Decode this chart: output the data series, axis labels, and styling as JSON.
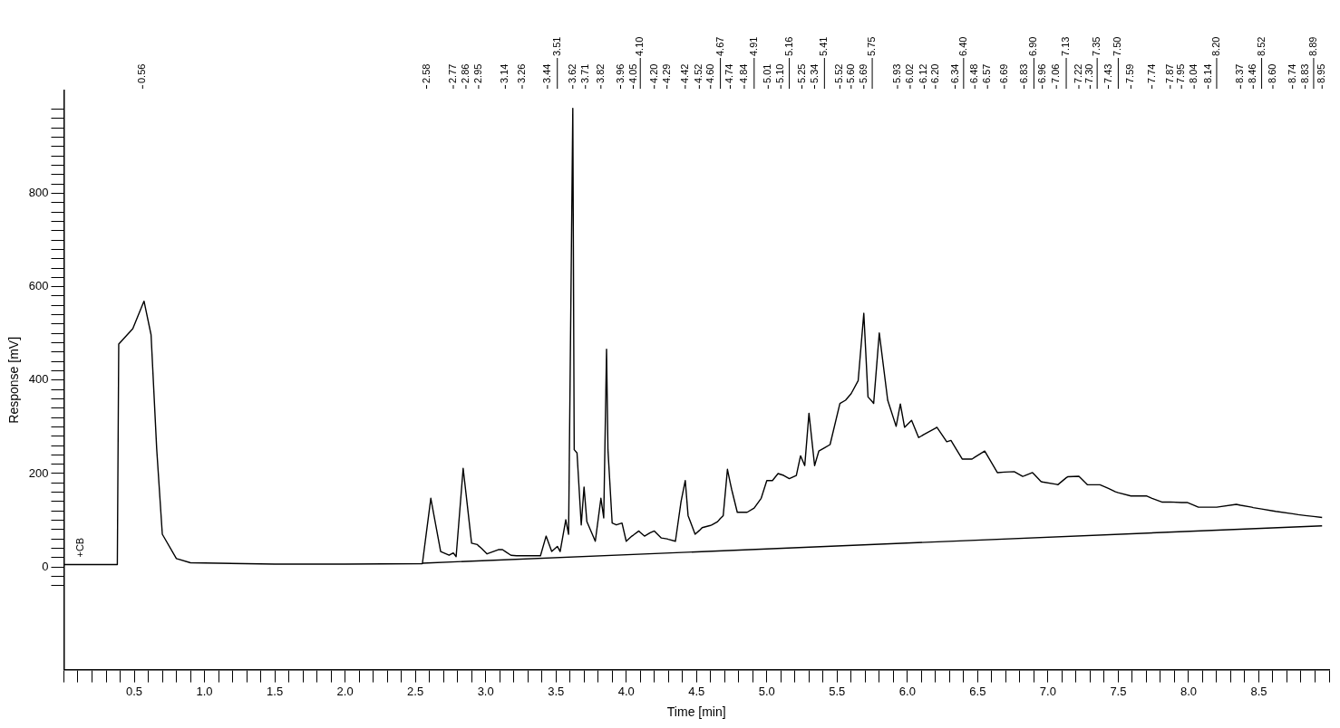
{
  "chart_data": {
    "type": "line",
    "xlabel": "Time [min]",
    "ylabel": "Response [mV]",
    "grid": false,
    "legend": false,
    "marker": "none",
    "line_style": "solid",
    "xlim": [
      0,
      9
    ],
    "ylim": [
      -220,
      1020
    ],
    "xticks": [
      {
        "value": 0,
        "label": null
      },
      {
        "value": 0.1,
        "label": null
      },
      {
        "value": 0.2,
        "label": null
      },
      {
        "value": 0.3,
        "label": null
      },
      {
        "value": 0.4,
        "label": null
      },
      {
        "value": 0.5,
        "label": "0.5"
      },
      {
        "value": 0.6,
        "label": null
      },
      {
        "value": 0.7,
        "label": null
      },
      {
        "value": 0.8,
        "label": null
      },
      {
        "value": 0.9,
        "label": null
      },
      {
        "value": 1,
        "label": "1.0"
      },
      {
        "value": 1.1,
        "label": null
      },
      {
        "value": 1.2,
        "label": null
      },
      {
        "value": 1.3,
        "label": null
      },
      {
        "value": 1.4,
        "label": null
      },
      {
        "value": 1.5,
        "label": "1.5"
      },
      {
        "value": 1.6,
        "label": null
      },
      {
        "value": 1.7,
        "label": null
      },
      {
        "value": 1.8,
        "label": null
      },
      {
        "value": 1.9,
        "label": null
      },
      {
        "value": 2,
        "label": "2.0"
      },
      {
        "value": 2.1,
        "label": null
      },
      {
        "value": 2.2,
        "label": null
      },
      {
        "value": 2.3,
        "label": null
      },
      {
        "value": 2.4,
        "label": null
      },
      {
        "value": 2.5,
        "label": "2.5"
      },
      {
        "value": 2.6,
        "label": null
      },
      {
        "value": 2.7,
        "label": null
      },
      {
        "value": 2.8,
        "label": null
      },
      {
        "value": 2.9,
        "label": null
      },
      {
        "value": 3,
        "label": "3.0"
      },
      {
        "value": 3.1,
        "label": null
      },
      {
        "value": 3.2,
        "label": null
      },
      {
        "value": 3.3,
        "label": null
      },
      {
        "value": 3.4,
        "label": null
      },
      {
        "value": 3.5,
        "label": "3.5"
      },
      {
        "value": 3.6,
        "label": null
      },
      {
        "value": 3.7,
        "label": null
      },
      {
        "value": 3.8,
        "label": null
      },
      {
        "value": 3.9,
        "label": null
      },
      {
        "value": 4,
        "label": "4.0"
      },
      {
        "value": 4.1,
        "label": null
      },
      {
        "value": 4.2,
        "label": null
      },
      {
        "value": 4.3,
        "label": null
      },
      {
        "value": 4.4,
        "label": null
      },
      {
        "value": 4.5,
        "label": "4.5"
      },
      {
        "value": 4.6,
        "label": null
      },
      {
        "value": 4.7,
        "label": null
      },
      {
        "value": 4.8,
        "label": null
      },
      {
        "value": 4.9,
        "label": null
      },
      {
        "value": 5,
        "label": "5.0"
      },
      {
        "value": 5.1,
        "label": null
      },
      {
        "value": 5.2,
        "label": null
      },
      {
        "value": 5.3,
        "label": null
      },
      {
        "value": 5.4,
        "label": null
      },
      {
        "value": 5.5,
        "label": "5.5"
      },
      {
        "value": 5.6,
        "label": null
      },
      {
        "value": 5.7,
        "label": null
      },
      {
        "value": 5.8,
        "label": null
      },
      {
        "value": 5.9,
        "label": null
      },
      {
        "value": 6,
        "label": "6.0"
      },
      {
        "value": 6.1,
        "label": null
      },
      {
        "value": 6.2,
        "label": null
      },
      {
        "value": 6.3,
        "label": null
      },
      {
        "value": 6.4,
        "label": null
      },
      {
        "value": 6.5,
        "label": "6.5"
      },
      {
        "value": 6.6,
        "label": null
      },
      {
        "value": 6.7,
        "label": null
      },
      {
        "value": 6.8,
        "label": null
      },
      {
        "value": 6.9,
        "label": null
      },
      {
        "value": 7,
        "label": "7.0"
      },
      {
        "value": 7.1,
        "label": null
      },
      {
        "value": 7.2,
        "label": null
      },
      {
        "value": 7.3,
        "label": null
      },
      {
        "value": 7.4,
        "label": null
      },
      {
        "value": 7.5,
        "label": "7.5"
      },
      {
        "value": 7.6,
        "label": null
      },
      {
        "value": 7.7,
        "label": null
      },
      {
        "value": 7.8,
        "label": null
      },
      {
        "value": 7.9,
        "label": null
      },
      {
        "value": 8,
        "label": "8.0"
      },
      {
        "value": 8.1,
        "label": null
      },
      {
        "value": 8.2,
        "label": null
      },
      {
        "value": 8.3,
        "label": null
      },
      {
        "value": 8.4,
        "label": null
      },
      {
        "value": 8.5,
        "label": "8.5"
      },
      {
        "value": 8.6,
        "label": null
      },
      {
        "value": 8.7,
        "label": null
      },
      {
        "value": 8.8,
        "label": null
      },
      {
        "value": 8.9,
        "label": null
      },
      {
        "value": 9,
        "label": null
      }
    ],
    "yticks": [
      {
        "value": -40,
        "label": null
      },
      {
        "value": -20,
        "label": null
      },
      0,
      {
        "value": 20,
        "label": null
      },
      {
        "value": 40,
        "label": null
      },
      {
        "value": 60,
        "label": null
      },
      {
        "value": 80,
        "label": null
      },
      {
        "value": 100,
        "label": null
      },
      {
        "value": 120,
        "label": null
      },
      {
        "value": 140,
        "label": null
      },
      {
        "value": 160,
        "label": null
      },
      {
        "value": 180,
        "label": null
      },
      200,
      {
        "value": 220,
        "label": null
      },
      {
        "value": 240,
        "label": null
      },
      {
        "value": 260,
        "label": null
      },
      {
        "value": 280,
        "label": null
      },
      {
        "value": 300,
        "label": null
      },
      {
        "value": 320,
        "label": null
      },
      {
        "value": 340,
        "label": null
      },
      {
        "value": 360,
        "label": null
      },
      {
        "value": 380,
        "label": null
      },
      400,
      {
        "value": 420,
        "label": null
      },
      {
        "value": 440,
        "label": null
      },
      {
        "value": 460,
        "label": null
      },
      {
        "value": 480,
        "label": null
      },
      {
        "value": 500,
        "label": null
      },
      {
        "value": 520,
        "label": null
      },
      {
        "value": 540,
        "label": null
      },
      {
        "value": 560,
        "label": null
      },
      {
        "value": 580,
        "label": null
      },
      600,
      {
        "value": 620,
        "label": null
      },
      {
        "value": 640,
        "label": null
      },
      {
        "value": 660,
        "label": null
      },
      {
        "value": 680,
        "label": null
      },
      {
        "value": 700,
        "label": null
      },
      {
        "value": 720,
        "label": null
      },
      {
        "value": 740,
        "label": null
      },
      {
        "value": 760,
        "label": null
      },
      {
        "value": 780,
        "label": null
      },
      800,
      {
        "value": 820,
        "label": null
      },
      {
        "value": 840,
        "label": null
      },
      {
        "value": 860,
        "label": null
      },
      {
        "value": 880,
        "label": null
      },
      {
        "value": 900,
        "label": null
      },
      {
        "value": 920,
        "label": null
      },
      {
        "value": 940,
        "label": null
      },
      {
        "value": 960,
        "label": null
      },
      {
        "value": 980,
        "label": null
      }
    ],
    "series": [
      {
        "color": "#000000",
        "x": [
          0,
          0.38,
          0.39,
          0.49,
          0.56,
          0.57,
          0.62,
          0.66,
          0.7,
          0.8,
          0.9,
          1.5,
          2.0,
          2.55,
          2.58,
          2.61,
          2.68,
          2.74,
          2.77,
          2.79,
          2.84,
          2.86,
          2.9,
          2.94,
          2.95,
          2.97,
          3.01,
          3.09,
          3.12,
          3.14,
          3.18,
          3.22,
          3.26,
          3.39,
          3.43,
          3.44,
          3.47,
          3.51,
          3.53,
          3.57,
          3.59,
          3.62,
          3.63,
          3.65,
          3.68,
          3.7,
          3.71,
          3.72,
          3.78,
          3.82,
          3.84,
          3.86,
          3.87,
          3.9,
          3.93,
          3.96,
          3.97,
          4.0,
          4.04,
          4.05,
          4.09,
          4.1,
          4.13,
          4.17,
          4.2,
          4.25,
          4.29,
          4.3,
          4.35,
          4.39,
          4.42,
          4.44,
          4.49,
          4.52,
          4.54,
          4.6,
          4.61,
          4.65,
          4.67,
          4.69,
          4.72,
          4.74,
          4.75,
          4.79,
          4.84,
          4.86,
          4.91,
          4.96,
          5.0,
          5.01,
          5.04,
          5.08,
          5.1,
          5.12,
          5.16,
          5.21,
          5.24,
          5.25,
          5.27,
          5.3,
          5.34,
          5.37,
          5.41,
          5.45,
          5.52,
          5.56,
          5.6,
          5.65,
          5.69,
          5.72,
          5.75,
          5.76,
          5.8,
          5.86,
          5.92,
          5.93,
          5.95,
          5.98,
          6.02,
          6.03,
          6.08,
          6.12,
          6.2,
          6.21,
          6.28,
          6.31,
          6.34,
          6.39,
          6.4,
          6.46,
          6.48,
          6.55,
          6.57,
          6.64,
          6.69,
          6.76,
          6.82,
          6.83,
          6.89,
          6.9,
          6.95,
          6.96,
          7.06,
          7.07,
          7.13,
          7.14,
          7.22,
          7.28,
          7.3,
          7.35,
          7.37,
          7.43,
          7.48,
          7.5,
          7.59,
          7.7,
          7.74,
          7.81,
          7.87,
          7.95,
          7.99,
          8.04,
          8.07,
          8.14,
          8.2,
          8.34,
          8.37,
          8.45,
          8.46,
          8.52,
          8.6,
          8.62,
          8.74,
          8.78,
          8.83,
          8.89,
          8.95
        ],
        "values": [
          5,
          5,
          477,
          510,
          562,
          569,
          497,
          253,
          70,
          18,
          9,
          6,
          6,
          7,
          77,
          147,
          33,
          25,
          30,
          22,
          211,
          158,
          51,
          48,
          45,
          40,
          28,
          37,
          37,
          33,
          25,
          24,
          24,
          24,
          66,
          58,
          33,
          44,
          33,
          101,
          70,
          982,
          251,
          244,
          90,
          171,
          134,
          97,
          55,
          147,
          105,
          466,
          251,
          94,
          90,
          93,
          94,
          55,
          66,
          68,
          77,
          74,
          66,
          73,
          77,
          62,
          60,
          59,
          55,
          140,
          185,
          110,
          70,
          78,
          84,
          89,
          90,
          97,
          104,
          110,
          209,
          180,
          166,
          117,
          117,
          117,
          126,
          147,
          185,
          185,
          185,
          200,
          198,
          196,
          189,
          196,
          238,
          231,
          217,
          329,
          217,
          248,
          255,
          262,
          350,
          357,
          371,
          399,
          543,
          364,
          354,
          350,
          501,
          357,
          301,
          317,
          349,
          299,
          311,
          314,
          277,
          284,
          297,
          299,
          268,
          271,
          256,
          231,
          231,
          231,
          235,
          248,
          238,
          202,
          203,
          204,
          194,
          195,
          202,
          199,
          183,
          182,
          177,
          176,
          191,
          193,
          194,
          176,
          176,
          176,
          176,
          168,
          161,
          159,
          152,
          152,
          147,
          139,
          139,
          138,
          138,
          132,
          128,
          128,
          128,
          134,
          132,
          128,
          127,
          124,
          120,
          119,
          114,
          112,
          110,
          108,
          106
        ]
      },
      {
        "color": "#000000",
        "x": [
          2.55,
          8.95
        ],
        "values": [
          8,
          88
        ]
      }
    ],
    "annotations": [
      "+CB",
      {
        "text": "0.56",
        "x": 0.56
      },
      {
        "text": "2.58",
        "x": 2.58
      },
      {
        "text": "2.77",
        "x": 2.77
      },
      {
        "text": "2.86",
        "x": 2.86
      },
      {
        "text": "2.95",
        "x": 2.95
      },
      {
        "text": "3.14",
        "x": 3.14
      },
      {
        "text": "3.26",
        "x": 3.26
      },
      {
        "text": "3.44",
        "x": 3.44
      },
      {
        "text": "3.51",
        "x": 3.51
      },
      {
        "text": "3.62",
        "x": 3.62
      },
      {
        "text": "3.71",
        "x": 3.71
      },
      {
        "text": "3.82",
        "x": 3.82
      },
      {
        "text": "3.96",
        "x": 3.96
      },
      {
        "text": "4.05",
        "x": 4.05
      },
      {
        "text": "4.10",
        "x": 4.1
      },
      {
        "text": "4.20",
        "x": 4.2
      },
      {
        "text": "4.29",
        "x": 4.29
      },
      {
        "text": "4.42",
        "x": 4.42
      },
      {
        "text": "4.52",
        "x": 4.52
      },
      {
        "text": "4.60",
        "x": 4.6
      },
      {
        "text": "4.67",
        "x": 4.67
      },
      {
        "text": "4.74",
        "x": 4.74
      },
      {
        "text": "4.84",
        "x": 4.84
      },
      {
        "text": "4.91",
        "x": 4.91
      },
      {
        "text": "5.01",
        "x": 5.01
      },
      {
        "text": "5.10",
        "x": 5.1
      },
      {
        "text": "5.16",
        "x": 5.16
      },
      {
        "text": "5.25",
        "x": 5.25
      },
      {
        "text": "5.34",
        "x": 5.34
      },
      {
        "text": "5.41",
        "x": 5.41
      },
      {
        "text": "5.52",
        "x": 5.52
      },
      {
        "text": "5.60",
        "x": 5.6
      },
      {
        "text": "5.69",
        "x": 5.69
      },
      {
        "text": "5.75",
        "x": 5.75
      },
      {
        "text": "5.93",
        "x": 5.93
      },
      {
        "text": "6.02",
        "x": 6.02
      },
      {
        "text": "6.12",
        "x": 6.12
      },
      {
        "text": "6.20",
        "x": 6.2
      },
      {
        "text": "6.34",
        "x": 6.34
      },
      {
        "text": "6.40",
        "x": 6.4
      },
      {
        "text": "6.48",
        "x": 6.48
      },
      {
        "text": "6.57",
        "x": 6.57
      },
      {
        "text": "6.69",
        "x": 6.69
      },
      {
        "text": "6.83",
        "x": 6.83
      },
      {
        "text": "6.90",
        "x": 6.9
      },
      {
        "text": "6.96",
        "x": 6.96
      },
      {
        "text": "7.06",
        "x": 7.06
      },
      {
        "text": "7.13",
        "x": 7.13
      },
      {
        "text": "7.22",
        "x": 7.22
      },
      {
        "text": "7.30",
        "x": 7.3
      },
      {
        "text": "7.35",
        "x": 7.35
      },
      {
        "text": "7.43",
        "x": 7.43
      },
      {
        "text": "7.50",
        "x": 7.5
      },
      {
        "text": "7.59",
        "x": 7.59
      },
      {
        "text": "7.74",
        "x": 7.74
      },
      {
        "text": "7.87",
        "x": 7.87
      },
      {
        "text": "7.95",
        "x": 7.95
      },
      {
        "text": "8.04",
        "x": 8.04
      },
      {
        "text": "8.14",
        "x": 8.14
      },
      {
        "text": "8.20",
        "x": 8.2
      },
      {
        "text": "8.37",
        "x": 8.37
      },
      {
        "text": "8.46",
        "x": 8.46
      },
      {
        "text": "8.52",
        "x": 8.52
      },
      {
        "text": "8.60",
        "x": 8.6
      },
      {
        "text": "8.74",
        "x": 8.74
      },
      {
        "text": "8.83",
        "x": 8.83
      },
      {
        "text": "8.89",
        "x": 8.89
      },
      {
        "text": "8.95",
        "x": 8.95
      }
    ]
  }
}
